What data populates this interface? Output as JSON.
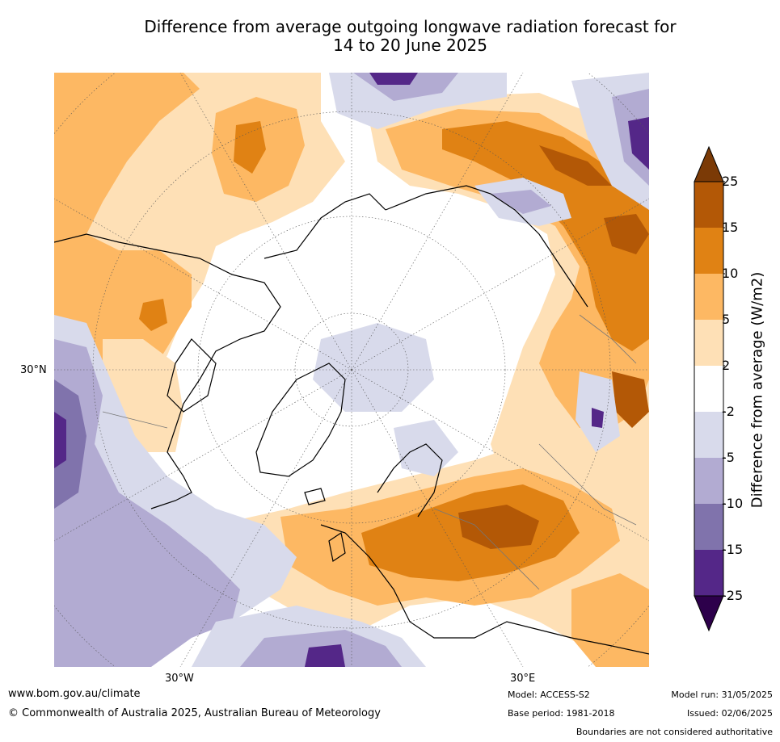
{
  "title": {
    "line1": "Difference from average outgoing longwave radiation forecast for",
    "line2": "14 to 20 June 2025"
  },
  "map": {
    "lon_labels": [
      "30°W",
      "30°E"
    ],
    "lat_label": "30°N"
  },
  "colorbar": {
    "label": "Difference from average (W/m2)",
    "ticks": [
      "25",
      "15",
      "10",
      "5",
      "2",
      "-2",
      "-5",
      "-10",
      "-15",
      "-25"
    ],
    "colors": {
      "over": "#7b3a06",
      "gt15": "#b35806",
      "10to15": "#e08214",
      "5to10": "#fdb863",
      "2to5": "#fee0b6",
      "neutral": "#ffffff",
      "m2tom5": "#d8daeb",
      "m5tom10": "#b2abd2",
      "m10tom15": "#8073ac",
      "m15tom25": "#542788",
      "under": "#2d004b"
    }
  },
  "footer": {
    "website": "www.bom.gov.au/climate",
    "copyright": "© Commonwealth of Australia 2025, Australian Bureau of Meteorology",
    "model": "Model: ACCESS-S2",
    "base_period": "Base period: 1981-2018",
    "model_run": "Model run: 31/05/2025",
    "issued": "Issued: 02/06/2025",
    "disclaimer": "Boundaries are not considered authoritative"
  }
}
